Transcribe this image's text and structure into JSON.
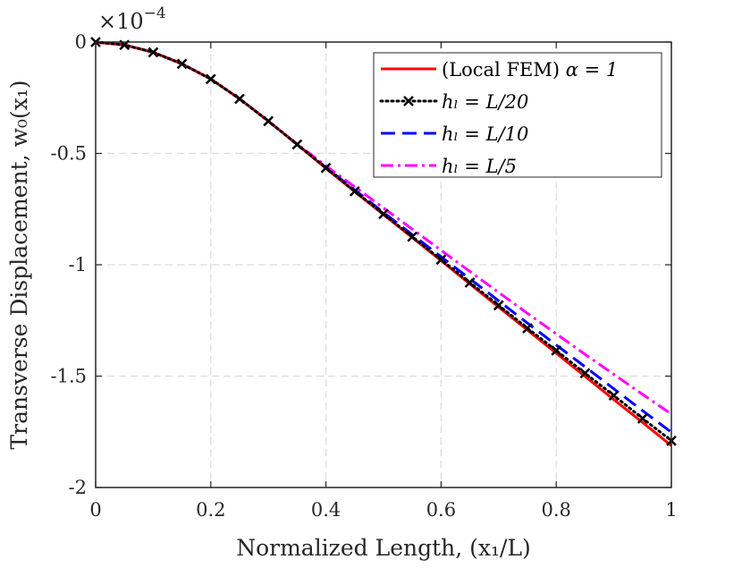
{
  "chart_data": {
    "type": "line",
    "xlabel": "Normalized Length, (x₁/L)",
    "ylabel": "Transverse Displacement, w₀(x₁)",
    "exponent_label": {
      "base": "×10",
      "power": "−4"
    },
    "xlim": [
      0,
      1
    ],
    "ylim": [
      -2,
      0
    ],
    "x_ticks": [
      0,
      0.2,
      0.4,
      0.6,
      0.8,
      1
    ],
    "x_tick_labels": [
      "0",
      "0.2",
      "0.4",
      "0.6",
      "0.8",
      "1"
    ],
    "y_ticks": [
      0,
      -0.5,
      -1,
      -1.5,
      -2
    ],
    "y_tick_labels": [
      "0",
      "-0.5",
      "-1",
      "-1.5",
      "-2"
    ],
    "grid": true,
    "legend_position": "top-right",
    "series": [
      {
        "name": "(Local FEM) α = 1",
        "legend_parts": {
          "plain": "(Local FEM) ",
          "math": "α = 1"
        },
        "color": "#ff0000",
        "style": "solid",
        "marker": "none",
        "x": [
          0,
          0.05,
          0.1,
          0.15,
          0.2,
          0.25,
          0.3,
          0.35,
          0.4,
          0.45,
          0.5,
          0.55,
          0.6,
          0.65,
          0.7,
          0.75,
          0.8,
          0.85,
          0.9,
          0.95,
          1
        ],
        "y": [
          0,
          -0.013,
          -0.046,
          -0.098,
          -0.166,
          -0.255,
          -0.355,
          -0.46,
          -0.567,
          -0.672,
          -0.775,
          -0.878,
          -0.982,
          -1.086,
          -1.19,
          -1.293,
          -1.397,
          -1.501,
          -1.605,
          -1.708,
          -1.812
        ]
      },
      {
        "name": "h_l = L/20",
        "legend_parts": {
          "plain": "",
          "math": "hₗ = L/20"
        },
        "color": "#000000",
        "style": "dotted",
        "marker": "x",
        "x": [
          0,
          0.05,
          0.1,
          0.15,
          0.2,
          0.25,
          0.3,
          0.35,
          0.4,
          0.45,
          0.5,
          0.55,
          0.6,
          0.65,
          0.7,
          0.75,
          0.8,
          0.85,
          0.9,
          0.95,
          1
        ],
        "y": [
          0,
          -0.013,
          -0.046,
          -0.098,
          -0.166,
          -0.255,
          -0.355,
          -0.46,
          -0.565,
          -0.67,
          -0.772,
          -0.874,
          -0.977,
          -1.08,
          -1.182,
          -1.285,
          -1.385,
          -1.487,
          -1.587,
          -1.69,
          -1.79
        ]
      },
      {
        "name": "h_l = L/10",
        "legend_parts": {
          "plain": "",
          "math": "hₗ = L/10"
        },
        "color": "#0000ff",
        "style": "dashed",
        "marker": "none",
        "x": [
          0,
          0.05,
          0.1,
          0.15,
          0.2,
          0.25,
          0.3,
          0.35,
          0.4,
          0.45,
          0.5,
          0.55,
          0.6,
          0.65,
          0.7,
          0.75,
          0.8,
          0.85,
          0.9,
          0.95,
          1
        ],
        "y": [
          0,
          -0.013,
          -0.046,
          -0.098,
          -0.166,
          -0.255,
          -0.355,
          -0.46,
          -0.563,
          -0.664,
          -0.765,
          -0.865,
          -0.964,
          -1.063,
          -1.162,
          -1.262,
          -1.36,
          -1.458,
          -1.557,
          -1.655,
          -1.752
        ]
      },
      {
        "name": "h_l = L/5",
        "legend_parts": {
          "plain": "",
          "math": "hₗ = L/5"
        },
        "color": "#ff00ff",
        "style": "dashdot",
        "marker": "none",
        "x": [
          0,
          0.05,
          0.1,
          0.15,
          0.2,
          0.25,
          0.3,
          0.35,
          0.4,
          0.45,
          0.5,
          0.55,
          0.6,
          0.65,
          0.7,
          0.75,
          0.8,
          0.85,
          0.9,
          0.95,
          1
        ],
        "y": [
          0,
          -0.013,
          -0.046,
          -0.098,
          -0.166,
          -0.255,
          -0.355,
          -0.458,
          -0.556,
          -0.65,
          -0.745,
          -0.84,
          -0.935,
          -1.03,
          -1.124,
          -1.218,
          -1.31,
          -1.402,
          -1.492,
          -1.582,
          -1.67
        ]
      }
    ]
  }
}
